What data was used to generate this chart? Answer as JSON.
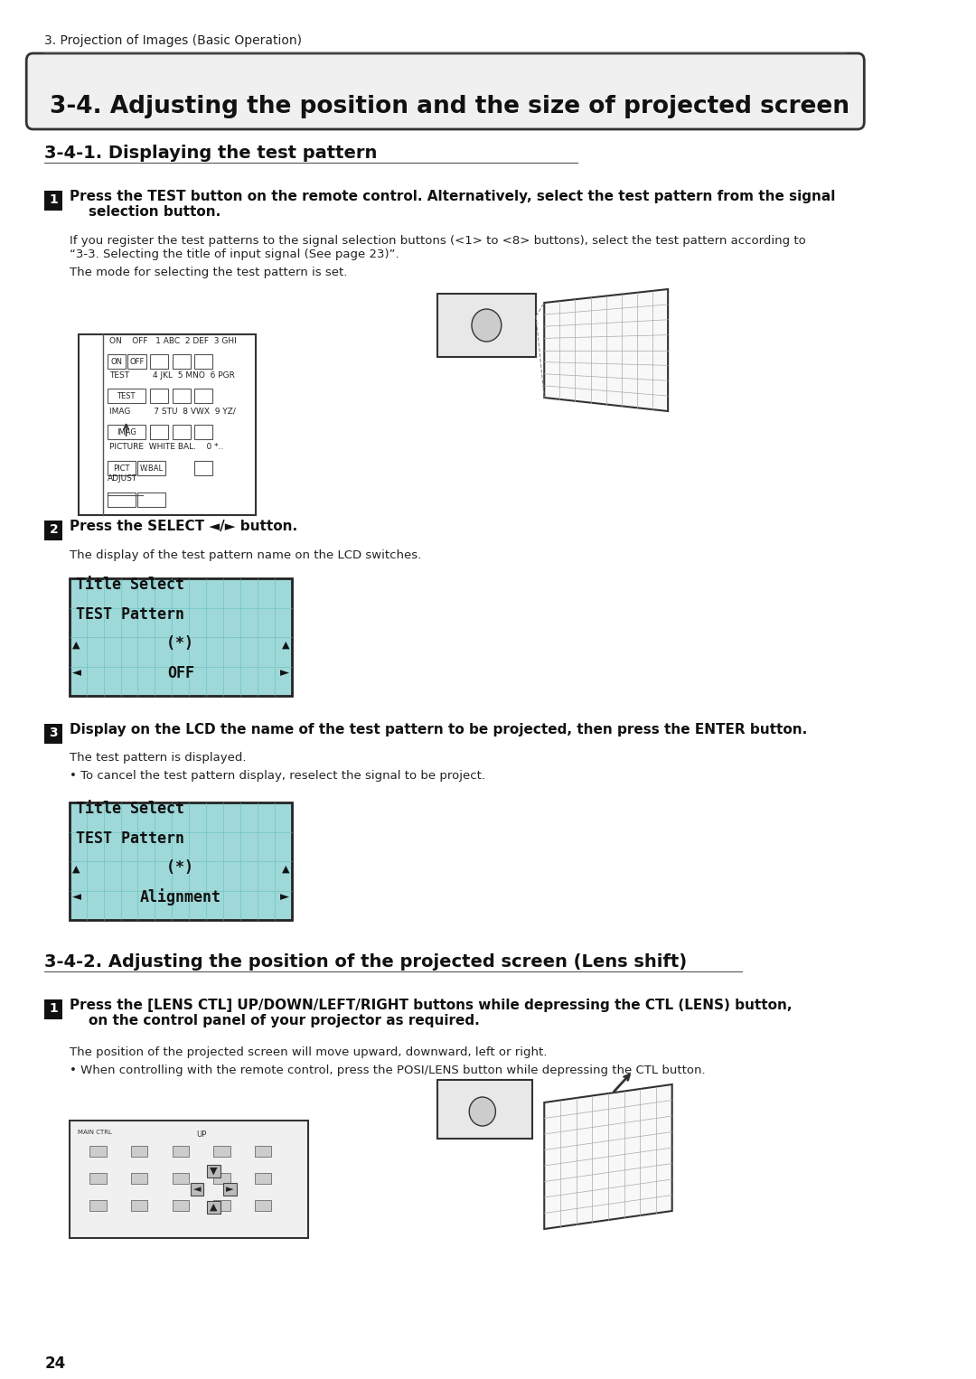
{
  "page_bg": "#ffffff",
  "page_number": "24",
  "section_header": "3. Projection of Images (Basic Operation)",
  "main_title": "3-4. Adjusting the position and the size of projected screen",
  "sub_title_1": "3-4-1. Displaying the test pattern",
  "sub_title_2": "3-4-2. Adjusting the position of the projected screen (Lens shift)",
  "step1_bold": "Press the TEST button on the remote control. Alternatively, select the test pattern from the signal\n    selection button.",
  "step1_note1": "If you register the test patterns to the signal selection buttons (<1> to <8> buttons), select the test pattern according to\n“3-3. Selecting the title of input signal (See page 23)”.",
  "step1_note2": "The mode for selecting the test pattern is set.",
  "step2_bold": "Press the SELECT ◄/► button.",
  "step2_note": "The display of the test pattern name on the LCD switches.",
  "lcd1_line1": "Title Select",
  "lcd1_line2": "TEST Pattern",
  "lcd1_line3": "          (*)▴",
  "lcd1_line4": "◄    OFF    ►",
  "step3_bold": "Display on the LCD the name of the test pattern to be projected, then press the ENTER button.",
  "step3_note1": "The test pattern is displayed.",
  "step3_note2": "• To cancel the test pattern display, reselect the signal to be project.",
  "lcd2_line1": "Title Select",
  "lcd2_line2": "TEST Pattern",
  "lcd2_line3": "          (*)▴",
  "lcd2_line4": "◄ Alignment ►",
  "step4_bold": "Press the [LENS CTL] UP/DOWN/LEFT/RIGHT buttons while depressing the CTL (LENS) button,\n    on the control panel of your projector as required.",
  "step4_note1": "The position of the projected screen will move upward, downward, left or right.",
  "step4_note2": "• When controlling with the remote control, press the POSI/LENS button while depressing the CTL button.",
  "lcd_bg": "#9fd8d8",
  "lcd_border": "#000000",
  "lcd_grid": "#5abcbc"
}
